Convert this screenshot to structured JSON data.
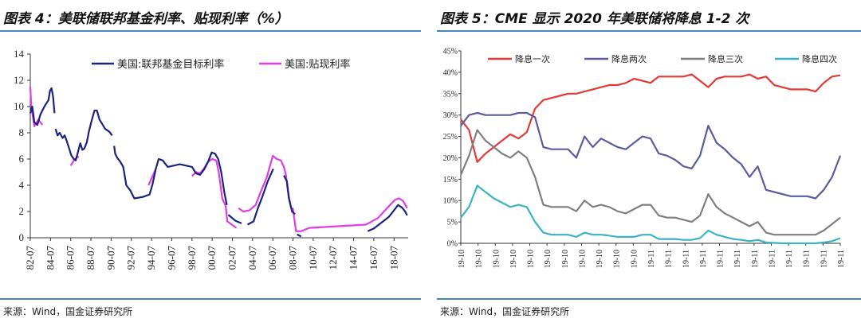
{
  "left": {
    "title": "图表 4：美联储联邦基金利率、贴现利率（%）",
    "source": "来源：Wind，国金证券研究所",
    "chart_data": {
      "type": "line",
      "ylim": [
        0,
        14
      ],
      "yticks": [
        0,
        2,
        4,
        6,
        8,
        10,
        12,
        14
      ],
      "xlim": [
        1982.5,
        2019.9
      ],
      "xticks": [
        {
          "v": 1982.5,
          "label": "82-07"
        },
        {
          "v": 1984.5,
          "label": "84-07"
        },
        {
          "v": 1986.5,
          "label": "86-07"
        },
        {
          "v": 1988.5,
          "label": "88-07"
        },
        {
          "v": 1990.5,
          "label": "90-07"
        },
        {
          "v": 1992.5,
          "label": "92-07"
        },
        {
          "v": 1994.5,
          "label": "94-07"
        },
        {
          "v": 1996.5,
          "label": "96-07"
        },
        {
          "v": 1998.5,
          "label": "98-07"
        },
        {
          "v": 2000.5,
          "label": "00-07"
        },
        {
          "v": 2002.5,
          "label": "02-07"
        },
        {
          "v": 2004.5,
          "label": "04-07"
        },
        {
          "v": 2006.5,
          "label": "06-07"
        },
        {
          "v": 2008.5,
          "label": "08-07"
        },
        {
          "v": 2010.5,
          "label": "10-07"
        },
        {
          "v": 2012.5,
          "label": "12-07"
        },
        {
          "v": 2014.5,
          "label": "14-07"
        },
        {
          "v": 2016.5,
          "label": "16-07"
        },
        {
          "v": 2018.5,
          "label": "18-07"
        }
      ],
      "legend_position": "top",
      "series": [
        {
          "name": "美国:联邦基金目标利率",
          "color": "#1a237e",
          "segments": [
            [
              [
                1982.5,
                9.5
              ],
              [
                1982.7,
                10.0
              ],
              [
                1982.9,
                8.8
              ],
              [
                1983.2,
                8.6
              ],
              [
                1983.5,
                9.4
              ],
              [
                1983.9,
                10.0
              ],
              [
                1984.3,
                10.5
              ],
              [
                1984.45,
                11.2
              ],
              [
                1984.6,
                11.4
              ],
              [
                1984.75,
                10.8
              ],
              [
                1984.9,
                9.5
              ]
            ],
            [
              [
                1985.0,
                8.3
              ],
              [
                1985.2,
                7.8
              ],
              [
                1985.4,
                8.0
              ],
              [
                1985.7,
                7.6
              ],
              [
                1985.9,
                7.8
              ],
              [
                1986.1,
                7.4
              ],
              [
                1986.3,
                6.9
              ],
              [
                1986.55,
                6.3
              ],
              [
                1986.8,
                6.0
              ],
              [
                1987.0,
                5.9
              ],
              [
                1987.2,
                6.5
              ],
              [
                1987.45,
                7.2
              ],
              [
                1987.65,
                6.7
              ],
              [
                1987.85,
                6.8
              ],
              [
                1988.1,
                7.3
              ],
              [
                1988.3,
                8.1
              ],
              [
                1988.6,
                9.0
              ],
              [
                1988.85,
                9.7
              ],
              [
                1989.1,
                9.7
              ],
              [
                1989.35,
                9.0
              ],
              [
                1989.6,
                8.7
              ],
              [
                1989.9,
                8.3
              ],
              [
                1990.3,
                8.1
              ],
              [
                1990.6,
                7.8
              ]
            ],
            [
              [
                1990.8,
                7.0
              ],
              [
                1990.9,
                6.4
              ],
              [
                1991.1,
                6.1
              ],
              [
                1991.4,
                5.8
              ],
              [
                1991.7,
                5.4
              ],
              [
                1992.0,
                4.0
              ],
              [
                1992.4,
                3.6
              ],
              [
                1992.8,
                3.0
              ],
              [
                1993.6,
                3.1
              ],
              [
                1994.3,
                3.3
              ],
              [
                1994.6,
                4.1
              ],
              [
                1994.9,
                5.2
              ],
              [
                1995.2,
                6.0
              ],
              [
                1995.6,
                5.9
              ],
              [
                1996.1,
                5.4
              ],
              [
                1997.3,
                5.6
              ],
              [
                1998.5,
                5.4
              ],
              [
                1998.9,
                4.9
              ],
              [
                1999.3,
                4.8
              ],
              [
                1999.7,
                5.2
              ],
              [
                2000.1,
                5.8
              ],
              [
                2000.45,
                6.5
              ],
              [
                2000.8,
                6.4
              ],
              [
                2001.1,
                6.0
              ],
              [
                2001.4,
                5.0
              ],
              [
                2001.7,
                3.5
              ],
              [
                2001.95,
                2.5
              ]
            ],
            [
              [
                2002.1,
                1.75
              ],
              [
                2002.8,
                1.3
              ],
              [
                2003.4,
                1.1
              ]
            ],
            [
              [
                2004.0,
                1.0
              ],
              [
                2004.6,
                1.25
              ],
              [
                2005.0,
                2.2
              ],
              [
                2005.5,
                3.2
              ],
              [
                2006.0,
                4.3
              ],
              [
                2006.55,
                5.25
              ]
            ],
            [
              [
                2007.6,
                4.75
              ],
              [
                2007.9,
                4.3
              ],
              [
                2008.1,
                3.0
              ],
              [
                2008.4,
                2.0
              ],
              [
                2008.7,
                1.8
              ]
            ],
            [
              [
                2008.9,
                0.25
              ],
              [
                2009.3,
                0.1
              ]
            ],
            [
              [
                2015.9,
                0.5
              ],
              [
                2016.5,
                0.7
              ],
              [
                2017.0,
                1.0
              ],
              [
                2017.5,
                1.3
              ],
              [
                2018.0,
                1.6
              ],
              [
                2018.5,
                2.1
              ],
              [
                2018.9,
                2.5
              ],
              [
                2019.3,
                2.3
              ],
              [
                2019.6,
                2.0
              ],
              [
                2019.8,
                1.7
              ]
            ]
          ]
        },
        {
          "name": "美国:贴现利率",
          "color": "#e23ce6",
          "segments": [
            [
              [
                1982.5,
                11.5
              ],
              [
                1982.6,
                10.0
              ],
              [
                1982.9,
                8.5
              ],
              [
                1983.3,
                9.0
              ],
              [
                1983.7,
                8.6
              ]
            ],
            [
              [
                1986.5,
                5.5
              ],
              [
                1986.9,
                6.0
              ],
              [
                1987.3,
                6.2
              ]
            ],
            [
              [
                1994.2,
                4.0
              ],
              [
                1994.6,
                4.7
              ],
              [
                1994.95,
                5.3
              ]
            ],
            [
              [
                1998.5,
                4.7
              ],
              [
                1998.9,
                5.0
              ],
              [
                1999.3,
                4.9
              ],
              [
                1999.7,
                5.3
              ],
              [
                2000.1,
                5.8
              ],
              [
                2000.5,
                6.0
              ],
              [
                2000.9,
                5.9
              ],
              [
                2001.15,
                5.0
              ],
              [
                2001.5,
                3.0
              ],
              [
                2001.85,
                2.4
              ],
              [
                2002.0,
                1.25
              ],
              [
                2002.9,
                0.75
              ]
            ],
            [
              [
                2003.1,
                2.25
              ],
              [
                2003.6,
                2.0
              ],
              [
                2004.2,
                2.1
              ],
              [
                2004.8,
                2.5
              ],
              [
                2005.3,
                3.5
              ],
              [
                2005.9,
                4.6
              ],
              [
                2006.5,
                6.25
              ],
              [
                2006.9,
                6.0
              ],
              [
                2007.3,
                5.9
              ],
              [
                2007.6,
                5.4
              ],
              [
                2007.8,
                4.8
              ],
              [
                2008.0,
                3.5
              ],
              [
                2008.3,
                2.3
              ],
              [
                2008.5,
                2.2
              ],
              [
                2008.8,
                0.5
              ],
              [
                2009.3,
                0.5
              ],
              [
                2010.1,
                0.75
              ],
              [
                2015.7,
                1.0
              ],
              [
                2016.2,
                1.2
              ],
              [
                2016.9,
                1.5
              ],
              [
                2017.5,
                2.0
              ],
              [
                2018.1,
                2.5
              ],
              [
                2018.6,
                2.9
              ],
              [
                2019.0,
                3.0
              ],
              [
                2019.4,
                2.8
              ],
              [
                2019.8,
                2.25
              ]
            ]
          ]
        }
      ]
    }
  },
  "right": {
    "title": "图表 5：CME 显示 2020 年美联储将降息 1-2 次",
    "source": "来源：Wind，国金证券研究所",
    "chart_data": {
      "type": "line",
      "ylim": [
        0,
        45
      ],
      "yticks": [
        "0%",
        "5%",
        "10%",
        "15%",
        "20%",
        "25%",
        "30%",
        "35%",
        "40%",
        "45%"
      ],
      "x_count": 47,
      "x_tick_labels": [
        "19-10",
        "19-10",
        "19-10",
        "19-10",
        "19-10",
        "19-10",
        "19-10",
        "19-10",
        "19-10",
        "19-10",
        "19-10",
        "19-11",
        "19-11",
        "19-11",
        "19-11",
        "19-11",
        "19-11",
        "19-11",
        "19-11",
        "19-11",
        "19-11",
        "19-11",
        "19-11"
      ],
      "legend_position": "top",
      "series": [
        {
          "name": "降息一次",
          "color": "#e53935",
          "values": [
            29,
            26.5,
            19,
            21,
            22.5,
            24,
            25.5,
            24.5,
            26,
            31.5,
            33.5,
            34,
            34.5,
            35,
            35,
            35.5,
            36,
            36.5,
            37,
            37,
            37.5,
            38.5,
            38,
            37.5,
            39,
            39,
            39,
            39,
            39.5,
            38,
            36.5,
            38.5,
            39,
            39,
            39,
            39.5,
            38.5,
            39,
            37,
            36.5,
            36,
            36,
            36,
            35.5,
            37.5,
            39,
            39.3
          ]
        },
        {
          "name": "降息两次",
          "color": "#5c5c9e",
          "values": [
            27.5,
            30,
            30.5,
            30,
            30,
            30,
            30,
            30.5,
            30.5,
            29.5,
            22.5,
            22,
            22,
            22,
            20,
            25,
            22.5,
            24.5,
            23.5,
            22.5,
            22,
            23.5,
            25,
            24.5,
            21,
            20.5,
            19.5,
            18,
            17.5,
            20.5,
            27.5,
            23.5,
            22,
            20,
            18.5,
            15.5,
            18,
            12.5,
            12,
            11.5,
            11,
            11,
            11,
            10.5,
            12.5,
            15.5,
            20.5
          ]
        },
        {
          "name": "降息三次",
          "color": "#7f7f7f",
          "values": [
            16,
            20.5,
            26.5,
            24,
            22.5,
            21,
            20,
            21.5,
            20,
            15.5,
            9,
            8.5,
            8.5,
            8.5,
            7.5,
            10,
            8.5,
            9,
            8.5,
            7.5,
            7,
            8,
            9,
            9,
            6.5,
            6,
            6,
            5.5,
            5,
            6.5,
            11.5,
            8.5,
            7,
            6,
            5,
            4,
            5,
            2.5,
            2,
            2,
            2,
            2,
            2,
            2,
            3,
            4.5,
            6
          ]
        },
        {
          "name": "降息四次",
          "color": "#3ab4c4",
          "values": [
            6,
            8.5,
            13.5,
            12,
            10.5,
            9.5,
            8.5,
            9,
            8.5,
            5,
            2.5,
            2,
            2,
            2,
            1.5,
            2.5,
            2,
            2,
            1.8,
            1.5,
            1.5,
            1.5,
            2,
            2,
            1,
            1,
            1,
            0.8,
            0.8,
            1.2,
            3,
            2,
            1.5,
            1,
            0.8,
            0.5,
            0.8,
            0.2,
            0.1,
            0,
            0,
            0,
            0,
            0,
            0.2,
            0.5,
            1.2
          ]
        }
      ]
    }
  }
}
